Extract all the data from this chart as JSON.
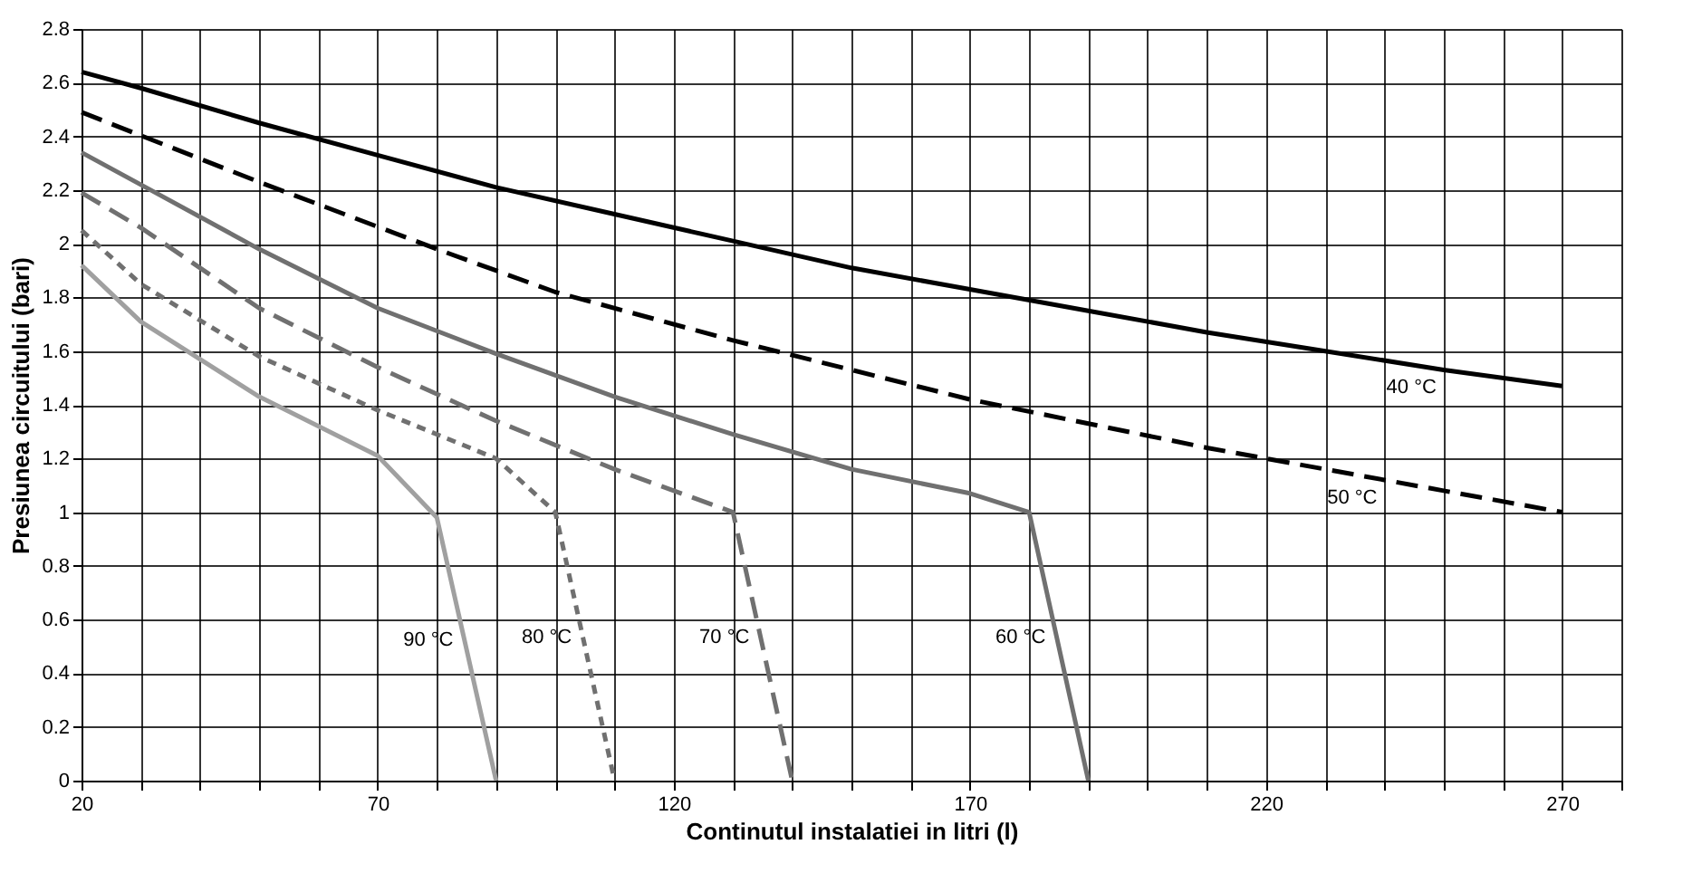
{
  "chart_data": {
    "type": "line",
    "xlabel": "Continutul instalatiei in litri (l)",
    "ylabel": "Presiunea circuitului  (bari)",
    "xlim": [
      20,
      280
    ],
    "ylim": [
      0,
      2.8
    ],
    "xticks": [
      20,
      {
        "value": 30,
        "label": null
      },
      {
        "value": 40,
        "label": null
      },
      {
        "value": 50,
        "label": null
      },
      {
        "value": 60,
        "label": null
      },
      70,
      {
        "value": 80,
        "label": null
      },
      {
        "value": 90,
        "label": null
      },
      {
        "value": 100,
        "label": null
      },
      {
        "value": 110,
        "label": null
      },
      120,
      {
        "value": 130,
        "label": null
      },
      {
        "value": 140,
        "label": null
      },
      {
        "value": 150,
        "label": null
      },
      {
        "value": 160,
        "label": null
      },
      170,
      {
        "value": 180,
        "label": null
      },
      {
        "value": 190,
        "label": null
      },
      {
        "value": 200,
        "label": null
      },
      {
        "value": 210,
        "label": null
      },
      220,
      {
        "value": 230,
        "label": null
      },
      {
        "value": 240,
        "label": null
      },
      {
        "value": 250,
        "label": null
      },
      {
        "value": 260,
        "label": null
      },
      270,
      {
        "value": 280,
        "label": null
      }
    ],
    "yticks": [
      0,
      0.2,
      0.4,
      0.6,
      0.8,
      1,
      1.2,
      1.4,
      1.6,
      1.8,
      2,
      2.2,
      2.4,
      2.6,
      2.8
    ],
    "grid": true,
    "marker": "none",
    "series": [
      {
        "color": "#000000",
        "line_style": "solid",
        "x": [
          20,
          30,
          50,
          70,
          90,
          110,
          130,
          150,
          170,
          190,
          210,
          230,
          250,
          270
        ],
        "values": [
          2.64,
          2.58,
          2.45,
          2.33,
          2.21,
          2.11,
          2.01,
          1.91,
          1.83,
          1.75,
          1.67,
          1.6,
          1.53,
          1.47
        ]
      },
      {
        "color": "#000000",
        "line_style": "dashed",
        "x": [
          20,
          50,
          80,
          100,
          130,
          150,
          170,
          190,
          210,
          230,
          250,
          270
        ],
        "values": [
          2.49,
          2.23,
          1.98,
          1.82,
          1.64,
          1.53,
          1.42,
          1.33,
          1.24,
          1.16,
          1.08,
          1.0
        ]
      },
      {
        "color": "#707070",
        "line_style": "solid",
        "x": [
          20,
          30,
          50,
          70,
          90,
          110,
          130,
          150,
          170,
          180,
          190
        ],
        "values": [
          2.34,
          2.22,
          1.98,
          1.76,
          1.59,
          1.43,
          1.29,
          1.16,
          1.07,
          1.0,
          0
        ]
      },
      {
        "color": "#707070",
        "line_style": "dashed",
        "x": [
          20,
          30,
          50,
          70,
          90,
          110,
          130,
          140
        ],
        "values": [
          2.19,
          2.06,
          1.76,
          1.54,
          1.34,
          1.16,
          1.0,
          0
        ]
      },
      {
        "color": "#707070",
        "line_style": "dotted",
        "x": [
          20,
          30,
          50,
          70,
          90,
          100,
          110
        ],
        "values": [
          2.05,
          1.85,
          1.58,
          1.38,
          1.2,
          1.0,
          0
        ]
      },
      {
        "color": "#a0a0a0",
        "line_style": "solid",
        "x": [
          20,
          30,
          50,
          70,
          80,
          90
        ],
        "values": [
          1.92,
          1.71,
          1.43,
          1.21,
          0.98,
          0
        ]
      }
    ],
    "annotations": [
      {
        "text": "40 °C",
        "x": 250,
        "y": 1.53
      },
      {
        "text": "50 °C",
        "x": 240,
        "y": 1.12
      },
      {
        "text": "60 °C",
        "x": 184,
        "y": 0.6
      },
      {
        "text": "70 °C",
        "x": 134,
        "y": 0.6
      },
      {
        "text": "80 °C",
        "x": 104,
        "y": 0.6
      },
      {
        "text": "90 °C",
        "x": 84,
        "y": 0.59
      }
    ]
  }
}
